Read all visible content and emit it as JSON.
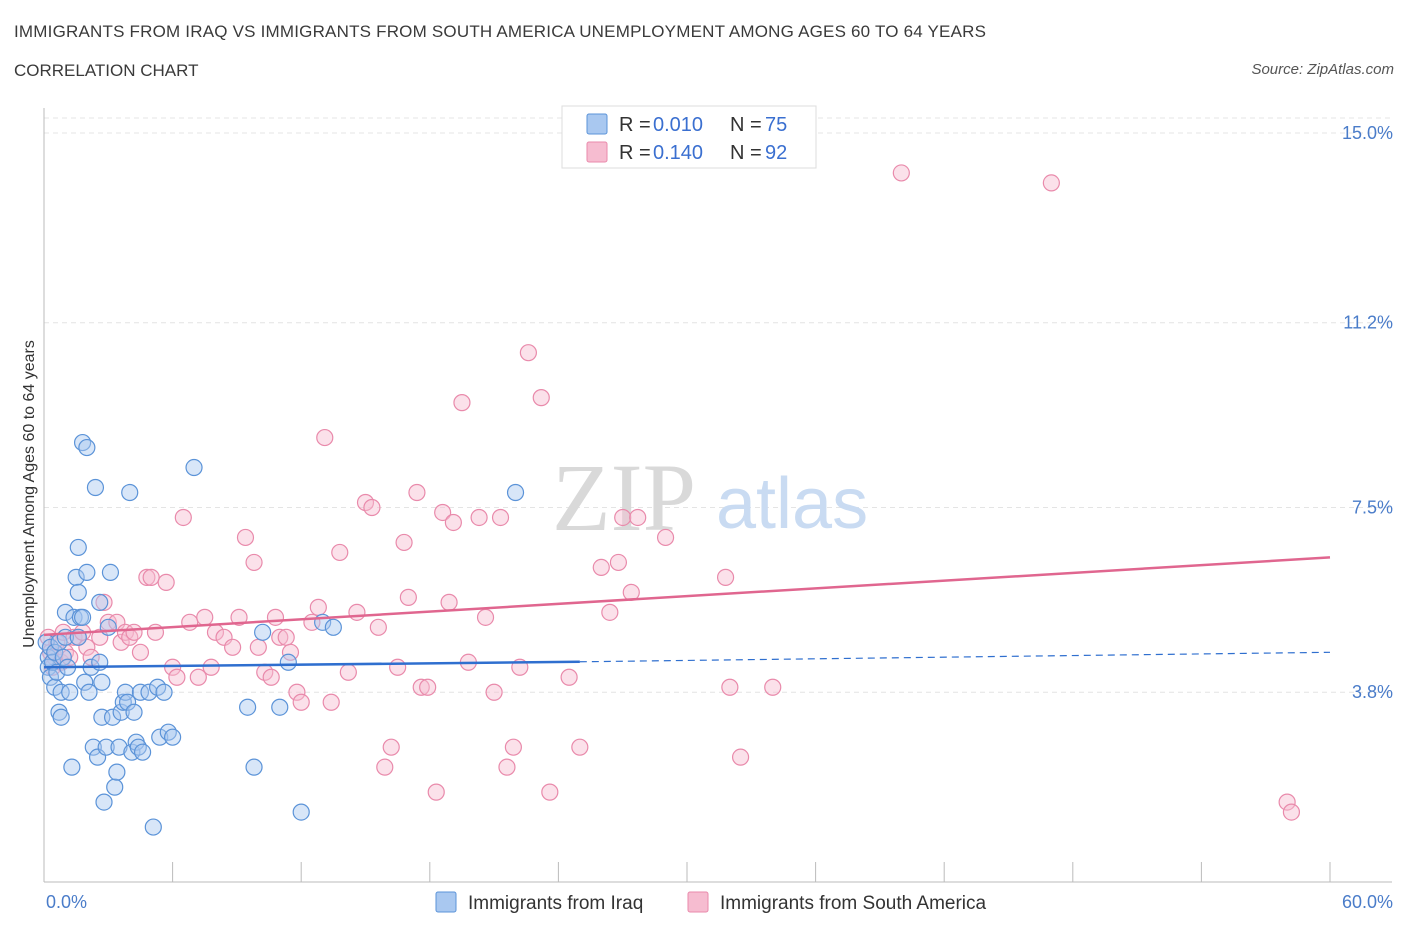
{
  "header": {
    "title": "IMMIGRANTS FROM IRAQ VS IMMIGRANTS FROM SOUTH AMERICA UNEMPLOYMENT AMONG AGES 60 TO 64 YEARS",
    "subtitle": "CORRELATION CHART",
    "source": "Source: ZipAtlas.com"
  },
  "watermark": {
    "zip": "ZIP",
    "atlas": "atlas"
  },
  "colors": {
    "iraq_fill": "#a9c8f0",
    "iraq_stroke": "#5b93d8",
    "iraq_line": "#2f6fcf",
    "sa_fill": "#f6bcd0",
    "sa_stroke": "#e98aab",
    "sa_line": "#e0668f",
    "grid": "#e4e4e4",
    "tick_text": "#4a7cc9"
  },
  "legend": {
    "rows": [
      {
        "r_label": "R = ",
        "r_value": "0.010",
        "n_label": "N = ",
        "n_value": "75"
      },
      {
        "r_label": "R = ",
        "r_value": "0.140",
        "n_label": "N = ",
        "n_value": "92"
      }
    ]
  },
  "chart_data": {
    "type": "scatter",
    "ylabel": "Unemployment Among Ages 60 to 64 years",
    "xlabel": "",
    "xlim": [
      0,
      60
    ],
    "ylim": [
      0,
      15.5
    ],
    "x_tick_labels": [
      "0.0%",
      "60.0%"
    ],
    "y_ticks": [
      3.8,
      7.5,
      11.2,
      15.0
    ],
    "y_tick_labels": [
      "3.8%",
      "7.5%",
      "11.2%",
      "15.0%"
    ],
    "grid": true,
    "legend_position": "top-center",
    "series": [
      {
        "name": "Immigrants from Iraq",
        "r": 0.01,
        "n": 75,
        "trend": {
          "x": [
            0,
            25
          ],
          "y": [
            4.3,
            4.41
          ],
          "dashed_extension_to_x": 60,
          "dashed_end_y": 4.6
        },
        "points": [
          [
            0.1,
            4.8
          ],
          [
            0.2,
            4.5
          ],
          [
            0.2,
            4.3
          ],
          [
            0.3,
            4.1
          ],
          [
            0.3,
            4.7
          ],
          [
            0.4,
            4.4
          ],
          [
            0.5,
            4.6
          ],
          [
            0.5,
            3.9
          ],
          [
            0.6,
            4.2
          ],
          [
            0.7,
            4.8
          ],
          [
            0.7,
            3.4
          ],
          [
            0.8,
            3.3
          ],
          [
            0.8,
            3.8
          ],
          [
            0.9,
            4.5
          ],
          [
            1.0,
            5.4
          ],
          [
            1.0,
            4.9
          ],
          [
            1.1,
            4.3
          ],
          [
            1.2,
            3.8
          ],
          [
            1.3,
            2.3
          ],
          [
            1.4,
            5.3
          ],
          [
            1.5,
            6.1
          ],
          [
            1.6,
            4.9
          ],
          [
            1.6,
            6.7
          ],
          [
            1.6,
            5.8
          ],
          [
            1.7,
            5.3
          ],
          [
            1.8,
            5.3
          ],
          [
            1.8,
            8.8
          ],
          [
            1.9,
            4.0
          ],
          [
            2.0,
            8.7
          ],
          [
            2.0,
            6.2
          ],
          [
            2.1,
            3.8
          ],
          [
            2.2,
            4.3
          ],
          [
            2.3,
            2.7
          ],
          [
            2.4,
            7.9
          ],
          [
            2.5,
            2.5
          ],
          [
            2.6,
            5.6
          ],
          [
            2.6,
            4.4
          ],
          [
            2.7,
            3.3
          ],
          [
            2.7,
            4.0
          ],
          [
            2.8,
            1.6
          ],
          [
            2.9,
            2.7
          ],
          [
            3.0,
            5.1
          ],
          [
            3.1,
            6.2
          ],
          [
            3.2,
            3.3
          ],
          [
            3.3,
            1.9
          ],
          [
            3.4,
            2.2
          ],
          [
            3.5,
            2.7
          ],
          [
            3.6,
            3.4
          ],
          [
            3.7,
            3.6
          ],
          [
            3.8,
            3.8
          ],
          [
            3.9,
            3.6
          ],
          [
            4.0,
            7.8
          ],
          [
            4.1,
            2.6
          ],
          [
            4.2,
            3.4
          ],
          [
            4.3,
            2.8
          ],
          [
            4.4,
            2.7
          ],
          [
            4.5,
            3.8
          ],
          [
            4.6,
            2.6
          ],
          [
            4.9,
            3.8
          ],
          [
            5.1,
            1.1
          ],
          [
            5.3,
            3.9
          ],
          [
            5.4,
            2.9
          ],
          [
            5.6,
            3.8
          ],
          [
            5.8,
            3.0
          ],
          [
            6.0,
            2.9
          ],
          [
            7.0,
            8.3
          ],
          [
            9.5,
            3.5
          ],
          [
            9.8,
            2.3
          ],
          [
            10.2,
            5.0
          ],
          [
            11.0,
            3.5
          ],
          [
            11.4,
            4.4
          ],
          [
            12.0,
            1.4
          ],
          [
            13.0,
            5.2
          ],
          [
            13.5,
            5.1
          ],
          [
            22.0,
            7.8
          ]
        ]
      },
      {
        "name": "Immigrants from South America",
        "r": 0.14,
        "n": 92,
        "trend": {
          "x": [
            0,
            60
          ],
          "y": [
            4.95,
            6.5
          ]
        },
        "points": [
          [
            0.2,
            4.9
          ],
          [
            0.3,
            4.6
          ],
          [
            0.4,
            4.3
          ],
          [
            0.5,
            4.5
          ],
          [
            0.6,
            4.8
          ],
          [
            0.8,
            4.4
          ],
          [
            0.9,
            5.0
          ],
          [
            1.0,
            4.6
          ],
          [
            1.2,
            4.5
          ],
          [
            1.4,
            4.9
          ],
          [
            1.6,
            4.9
          ],
          [
            1.8,
            5.0
          ],
          [
            2.0,
            4.7
          ],
          [
            2.2,
            4.5
          ],
          [
            2.6,
            4.9
          ],
          [
            2.8,
            5.6
          ],
          [
            3.0,
            5.2
          ],
          [
            3.4,
            5.2
          ],
          [
            3.6,
            4.8
          ],
          [
            3.8,
            5.0
          ],
          [
            4.0,
            4.9
          ],
          [
            4.2,
            5.0
          ],
          [
            4.5,
            4.6
          ],
          [
            4.8,
            6.1
          ],
          [
            5.0,
            6.1
          ],
          [
            5.2,
            5.0
          ],
          [
            5.7,
            6.0
          ],
          [
            6.0,
            4.3
          ],
          [
            6.2,
            4.1
          ],
          [
            6.5,
            7.3
          ],
          [
            6.8,
            5.2
          ],
          [
            7.2,
            4.1
          ],
          [
            7.5,
            5.3
          ],
          [
            7.8,
            4.3
          ],
          [
            8.0,
            5.0
          ],
          [
            8.4,
            4.9
          ],
          [
            8.8,
            4.7
          ],
          [
            9.1,
            5.3
          ],
          [
            9.4,
            6.9
          ],
          [
            9.8,
            6.4
          ],
          [
            10.0,
            4.7
          ],
          [
            10.3,
            4.2
          ],
          [
            10.6,
            4.1
          ],
          [
            10.8,
            5.3
          ],
          [
            11.0,
            4.9
          ],
          [
            11.3,
            4.9
          ],
          [
            11.5,
            4.6
          ],
          [
            11.8,
            3.8
          ],
          [
            12.0,
            3.6
          ],
          [
            12.5,
            5.2
          ],
          [
            12.8,
            5.5
          ],
          [
            13.1,
            8.9
          ],
          [
            13.4,
            3.6
          ],
          [
            13.8,
            6.6
          ],
          [
            14.2,
            4.2
          ],
          [
            14.6,
            5.4
          ],
          [
            15.0,
            7.6
          ],
          [
            15.3,
            7.5
          ],
          [
            15.6,
            5.1
          ],
          [
            15.9,
            2.3
          ],
          [
            16.2,
            2.7
          ],
          [
            16.5,
            4.3
          ],
          [
            16.8,
            6.8
          ],
          [
            17.0,
            5.7
          ],
          [
            17.4,
            7.8
          ],
          [
            17.6,
            3.9
          ],
          [
            17.9,
            3.9
          ],
          [
            18.3,
            1.8
          ],
          [
            18.6,
            7.4
          ],
          [
            18.9,
            5.6
          ],
          [
            19.1,
            7.2
          ],
          [
            19.5,
            9.6
          ],
          [
            19.8,
            4.4
          ],
          [
            20.3,
            7.3
          ],
          [
            20.6,
            5.3
          ],
          [
            21.0,
            3.8
          ],
          [
            21.3,
            7.3
          ],
          [
            21.6,
            2.3
          ],
          [
            21.9,
            2.7
          ],
          [
            22.2,
            4.3
          ],
          [
            22.6,
            10.6
          ],
          [
            23.2,
            9.7
          ],
          [
            23.6,
            1.8
          ],
          [
            24.5,
            4.1
          ],
          [
            25.0,
            2.7
          ],
          [
            26.0,
            6.3
          ],
          [
            26.4,
            5.4
          ],
          [
            26.8,
            6.4
          ],
          [
            27.0,
            7.3
          ],
          [
            27.4,
            5.8
          ],
          [
            27.7,
            7.3
          ],
          [
            29.0,
            6.9
          ]
        ],
        "extra_points": [
          [
            31.8,
            6.1
          ],
          [
            32.0,
            3.9
          ],
          [
            32.5,
            2.5
          ],
          [
            34.0,
            3.9
          ],
          [
            40.0,
            14.2
          ],
          [
            47.0,
            14.0
          ],
          [
            58.0,
            1.6
          ],
          [
            58.2,
            1.4
          ]
        ]
      }
    ]
  },
  "bottom_legend": {
    "items": [
      "Immigrants from Iraq",
      "Immigrants from South America"
    ]
  }
}
